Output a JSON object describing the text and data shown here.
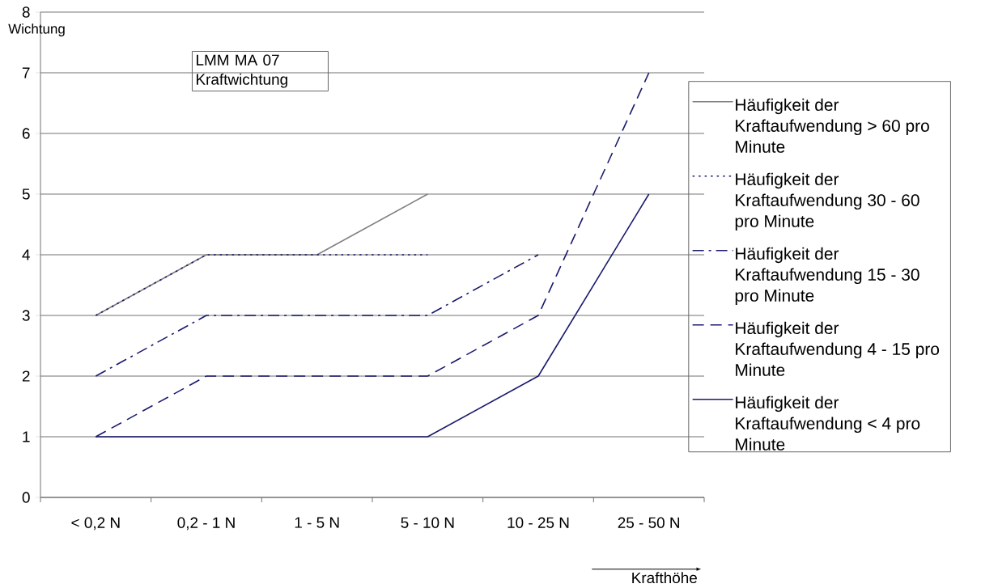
{
  "chart_data": {
    "type": "line",
    "title": "LMM MA 07 Kraftwichtung",
    "ylabel": "Wichtung",
    "xlabel": "Krafthöhe",
    "categories": [
      "< 0,2 N",
      "0,2 - 1 N",
      "1 - 5 N",
      "5 - 10 N",
      "10 - 25 N",
      "25 - 50 N"
    ],
    "ylim": [
      0,
      8
    ],
    "yticks": [
      0,
      1,
      2,
      3,
      4,
      5,
      6,
      7,
      8
    ],
    "grid": "y",
    "legend": "right",
    "marker": "none",
    "series": [
      {
        "name": "Häufigkeit der Kraftaufwendung > 60 pro Minute",
        "color": "#808080",
        "line_style": "solid",
        "values": [
          3,
          4,
          4,
          5,
          null,
          null
        ]
      },
      {
        "name": "Häufigkeit der Kraftaufwendung 30 - 60 pro Minute",
        "color": "#1a1a6e",
        "line_style": "dotted",
        "values": [
          3,
          4,
          4,
          4,
          null,
          null
        ]
      },
      {
        "name": "Häufigkeit der Kraftaufwendung 15 - 30 pro Minute",
        "color": "#1a1a6e",
        "line_style": "dashdot",
        "values": [
          2,
          3,
          3,
          3,
          4,
          null
        ]
      },
      {
        "name": "Häufigkeit der Kraftaufwendung 4 - 15 pro Minute",
        "color": "#1a1a6e",
        "line_style": "dashed",
        "values": [
          1,
          2,
          2,
          2,
          3,
          7
        ]
      },
      {
        "name": "Häufigkeit der Kraftaufwendung < 4 pro Minute",
        "color": "#1a1a6e",
        "line_style": "solid",
        "values": [
          1,
          1,
          1,
          1,
          2,
          5
        ]
      }
    ]
  }
}
